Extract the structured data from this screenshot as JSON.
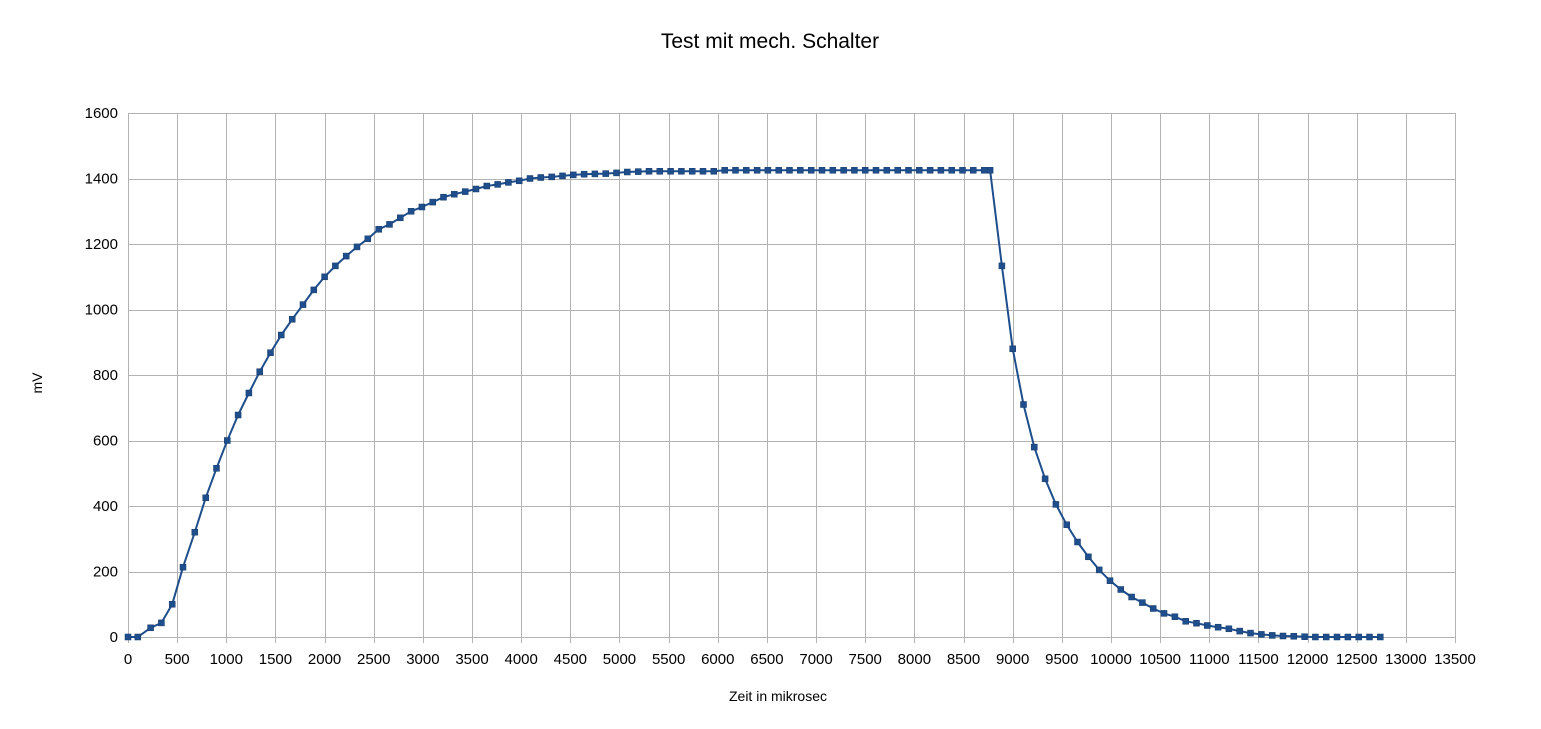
{
  "chart_data": {
    "type": "line",
    "title": "Test mit mech. Schalter",
    "xlabel": "Zeit in mikrosec",
    "ylabel": "mV",
    "xlim": [
      0,
      13500
    ],
    "ylim": [
      0,
      1600
    ],
    "x_ticks": [
      "0",
      "500",
      "1000",
      "1500",
      "2000",
      "2500",
      "3000",
      "3500",
      "4000",
      "4500",
      "5000",
      "5500",
      "6000",
      "6500",
      "7000",
      "7500",
      "8000",
      "8500",
      "9000",
      "9500",
      "10000",
      "10500",
      "11000",
      "11500",
      "12000",
      "12500",
      "13000",
      "13500"
    ],
    "y_ticks": [
      "0",
      "200",
      "400",
      "600",
      "800",
      "1000",
      "1200",
      "1400",
      "1600"
    ],
    "grid": true,
    "legend": "none",
    "series": [
      {
        "color": "#1f4e8c",
        "marker": "square",
        "x": [
          0,
          100,
          230,
          340,
          450,
          560,
          680,
          790,
          900,
          1010,
          1120,
          1230,
          1340,
          1450,
          1560,
          1670,
          1780,
          1890,
          2000,
          2110,
          2220,
          2330,
          2440,
          2550,
          2660,
          2770,
          2880,
          2990,
          3100,
          3210,
          3320,
          3430,
          3540,
          3650,
          3760,
          3870,
          3980,
          4090,
          4200,
          4310,
          4420,
          4530,
          4640,
          4750,
          4860,
          4970,
          5080,
          5190,
          5300,
          5410,
          5520,
          5630,
          5740,
          5850,
          5960,
          6070,
          6180,
          6290,
          6400,
          6510,
          6620,
          6730,
          6840,
          6950,
          7060,
          7170,
          7280,
          7390,
          7500,
          7610,
          7720,
          7830,
          7940,
          8050,
          8160,
          8270,
          8380,
          8490,
          8600,
          8710,
          8770,
          8890,
          9000,
          9110,
          9220,
          9330,
          9440,
          9550,
          9660,
          9770,
          9880,
          9990,
          10100,
          10210,
          10320,
          10430,
          10540,
          10650,
          10760,
          10870,
          10980,
          11090,
          11200,
          11310,
          11420,
          11530,
          11640,
          11750,
          11860,
          11970,
          12080,
          12190,
          12300,
          12410,
          12520,
          12630,
          12740
        ],
        "y": [
          0,
          0,
          28,
          43,
          100,
          213,
          320,
          425,
          515,
          600,
          678,
          745,
          810,
          868,
          922,
          970,
          1015,
          1060,
          1100,
          1133,
          1163,
          1191,
          1216,
          1245,
          1260,
          1280,
          1300,
          1313,
          1328,
          1343,
          1352,
          1360,
          1368,
          1377,
          1382,
          1388,
          1393,
          1400,
          1403,
          1405,
          1408,
          1411,
          1413,
          1414,
          1415,
          1417,
          1420,
          1421,
          1422,
          1422,
          1422,
          1422,
          1422,
          1422,
          1422,
          1425,
          1425,
          1425,
          1425,
          1425,
          1425,
          1425,
          1425,
          1425,
          1425,
          1425,
          1425,
          1425,
          1425,
          1425,
          1425,
          1425,
          1425,
          1425,
          1425,
          1425,
          1425,
          1425,
          1425,
          1425,
          1425,
          1133,
          880,
          710,
          580,
          483,
          405,
          343,
          290,
          245,
          205,
          172,
          145,
          122,
          105,
          87,
          72,
          62,
          48,
          42,
          35,
          30,
          25,
          18,
          12,
          8,
          5,
          3,
          2,
          1,
          0,
          0,
          0,
          0,
          0,
          0,
          0
        ]
      }
    ]
  }
}
